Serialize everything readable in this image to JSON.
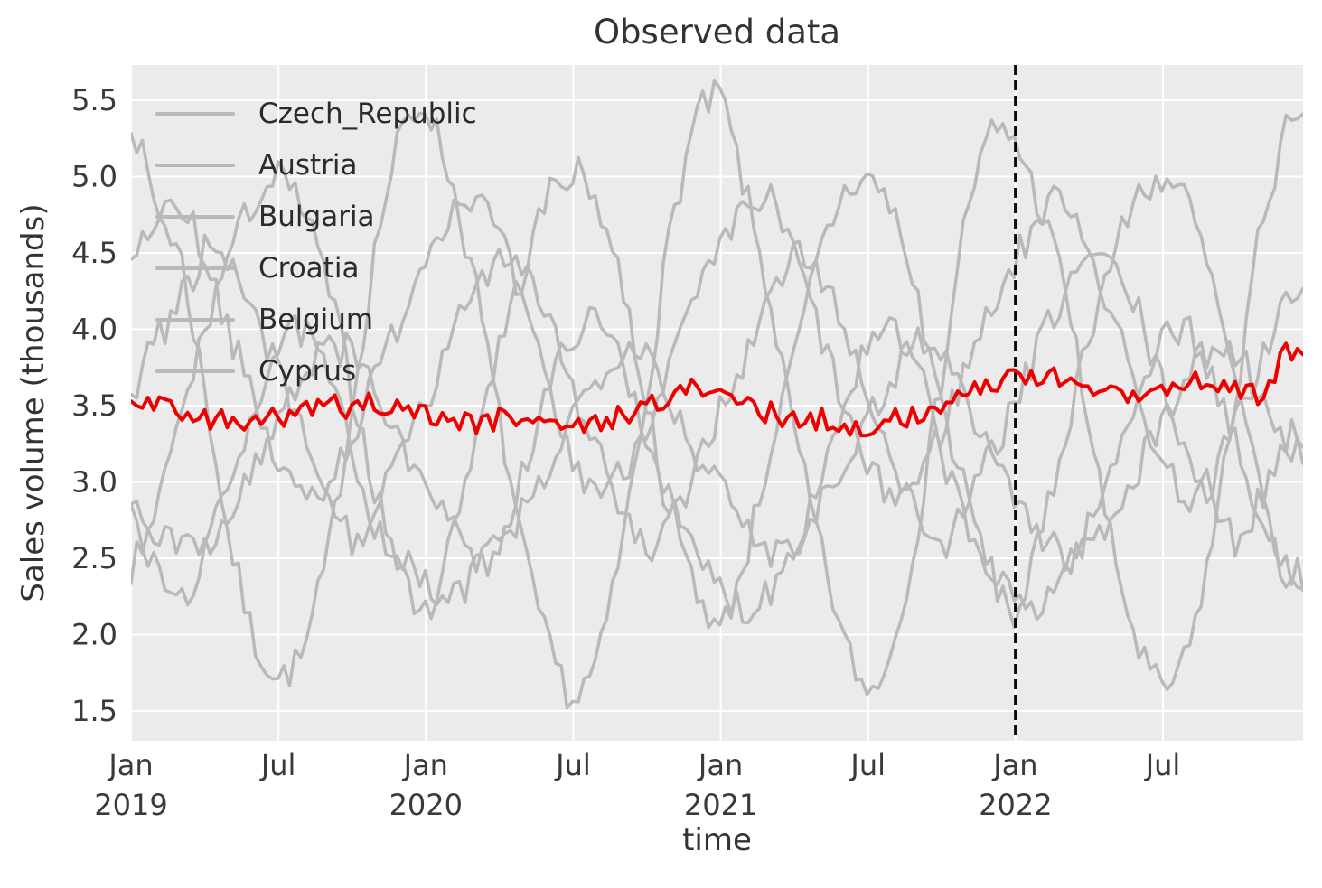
{
  "chart_data": {
    "type": "line",
    "title": "Observed data",
    "xlabel": "time",
    "ylabel": "Sales volume (thousands)",
    "grid": true,
    "legend_position": "upper left",
    "x_start": "Jan 2019",
    "x_end": "Dec 2022",
    "x_tick_months": [
      0,
      6,
      12,
      18,
      24,
      30,
      36,
      42
    ],
    "x_tick_labels": [
      [
        "Jan",
        "2019"
      ],
      [
        "Jul",
        ""
      ],
      [
        "Jan",
        "2020"
      ],
      [
        "Jul",
        ""
      ],
      [
        "Jan",
        "2021"
      ],
      [
        "Jul",
        ""
      ],
      [
        "Jan",
        "2022"
      ],
      [
        "Jul",
        ""
      ]
    ],
    "xlim_months": [
      0,
      47.7
    ],
    "y_ticks": [
      1.5,
      2.0,
      2.5,
      3.0,
      3.5,
      4.0,
      4.5,
      5.0,
      5.5
    ],
    "ylim": [
      1.305,
      5.731
    ],
    "frequency": "weekly",
    "vline": {
      "x_month": 36,
      "at_label": "Jan 2022",
      "style": "dashed",
      "color": "#0a0a0a"
    },
    "series": [
      {
        "name": "Czech_Republic",
        "color": "#b9b9b9",
        "monthly_values": [
          5.4,
          4.8,
          4.5,
          3.6,
          2.6,
          1.95,
          1.7,
          1.85,
          2.5,
          3.5,
          4.6,
          5.3,
          5.5,
          5.0,
          4.3,
          3.4,
          2.5,
          1.9,
          1.55,
          1.8,
          2.6,
          3.6,
          4.7,
          5.4,
          5.55,
          4.9,
          4.2,
          3.3,
          2.6,
          1.95,
          1.6,
          1.9,
          2.7,
          3.7,
          4.8,
          5.3,
          5.25,
          4.8,
          4.3,
          3.35,
          2.5,
          1.9,
          1.6,
          1.85,
          2.6,
          3.6,
          4.7,
          5.3
        ]
      },
      {
        "name": "Austria",
        "color": "#b9b9b9",
        "monthly_values": [
          2.4,
          2.8,
          3.4,
          4.0,
          4.5,
          4.85,
          5.0,
          4.8,
          4.3,
          3.6,
          2.9,
          2.4,
          2.1,
          2.6,
          3.3,
          3.9,
          4.4,
          4.9,
          5.05,
          4.85,
          4.3,
          3.5,
          2.8,
          2.3,
          2.0,
          2.5,
          3.2,
          3.8,
          4.5,
          4.9,
          5.0,
          4.8,
          4.2,
          3.5,
          2.9,
          2.4,
          2.1,
          2.6,
          3.3,
          4.0,
          4.5,
          4.9,
          5.0,
          4.85,
          4.3,
          3.6,
          2.9,
          2.4
        ]
      },
      {
        "name": "Bulgaria",
        "color": "#b9b9b9",
        "monthly_values": [
          4.4,
          4.75,
          4.85,
          4.5,
          4.0,
          3.5,
          3.1,
          2.9,
          3.0,
          3.3,
          3.7,
          4.1,
          4.5,
          4.8,
          4.9,
          4.6,
          4.1,
          3.6,
          3.1,
          2.95,
          3.05,
          3.4,
          3.8,
          4.2,
          4.5,
          4.8,
          4.85,
          4.5,
          4.0,
          3.5,
          3.05,
          2.9,
          3.0,
          3.35,
          3.75,
          4.15,
          4.45,
          4.75,
          4.9,
          4.55,
          4.05,
          3.55,
          3.1,
          2.9,
          3.0,
          3.4,
          3.8,
          4.2
        ]
      },
      {
        "name": "Croatia",
        "color": "#b9b9b9",
        "monthly_values": [
          2.8,
          2.4,
          2.2,
          2.5,
          3.0,
          3.5,
          3.9,
          4.0,
          3.7,
          3.2,
          2.7,
          2.5,
          2.3,
          2.2,
          2.4,
          2.6,
          3.1,
          3.6,
          4.0,
          4.05,
          3.8,
          3.3,
          2.8,
          2.5,
          2.3,
          2.15,
          2.3,
          2.6,
          3.0,
          3.5,
          3.9,
          4.0,
          3.75,
          3.2,
          2.7,
          2.4,
          2.2,
          2.2,
          2.4,
          2.7,
          3.1,
          3.6,
          4.0,
          4.0,
          3.7,
          3.2,
          2.7,
          2.4
        ]
      },
      {
        "name": "Belgium",
        "color": "#b9b9b9",
        "monthly_values": [
          3.6,
          3.9,
          4.2,
          4.5,
          4.4,
          4.1,
          3.7,
          3.3,
          2.9,
          2.6,
          2.8,
          3.2,
          3.5,
          3.9,
          4.3,
          4.5,
          4.45,
          4.1,
          3.6,
          3.2,
          2.8,
          2.5,
          2.7,
          3.1,
          3.5,
          3.8,
          4.2,
          4.5,
          4.4,
          4.0,
          3.6,
          3.1,
          2.8,
          2.55,
          2.8,
          3.2,
          3.5,
          3.9,
          4.25,
          4.5,
          4.4,
          4.1,
          3.6,
          3.2,
          2.8,
          2.6,
          2.9,
          3.3
        ]
      },
      {
        "name": "Cyprus",
        "color": "#b9b9b9",
        "monthly_values": [
          2.9,
          2.7,
          2.55,
          2.6,
          2.8,
          3.1,
          3.4,
          3.7,
          3.9,
          3.85,
          3.6,
          3.2,
          3.0,
          2.7,
          2.5,
          2.55,
          2.8,
          3.1,
          3.45,
          3.7,
          3.9,
          3.9,
          3.5,
          3.2,
          2.95,
          2.7,
          2.55,
          2.6,
          2.85,
          3.15,
          3.4,
          3.7,
          3.95,
          3.85,
          3.55,
          3.2,
          2.9,
          2.65,
          2.5,
          2.6,
          2.8,
          3.1,
          3.4,
          3.7,
          3.9,
          3.85,
          3.6,
          3.2
        ]
      }
    ],
    "highlighted_series": {
      "name": "highlighted (unlabeled red line)",
      "color": "#ee0000",
      "monthly_values": [
        3.55,
        3.5,
        3.45,
        3.4,
        3.42,
        3.38,
        3.42,
        3.45,
        3.5,
        3.48,
        3.52,
        3.5,
        3.45,
        3.4,
        3.38,
        3.42,
        3.45,
        3.4,
        3.35,
        3.38,
        3.45,
        3.5,
        3.55,
        3.62,
        3.6,
        3.5,
        3.45,
        3.4,
        3.42,
        3.38,
        3.36,
        3.4,
        3.45,
        3.5,
        3.55,
        3.65,
        3.72,
        3.7,
        3.65,
        3.6,
        3.62,
        3.58,
        3.6,
        3.65,
        3.68,
        3.6,
        3.55,
        3.85
      ]
    },
    "noise": {
      "gray_amplitude": 0.12,
      "red_amplitude": 0.075,
      "seed": 7,
      "n_samples": 208
    }
  },
  "colors": {
    "figure_background": "#ffffff",
    "axes_background": "#ebebeb",
    "gridline": "#ffffff",
    "gray_line": "#b9b9b9",
    "red_line": "#ee0000",
    "vline": "#0a0a0a",
    "tick_text": "#3a3a3a",
    "label_text": "#333333"
  }
}
